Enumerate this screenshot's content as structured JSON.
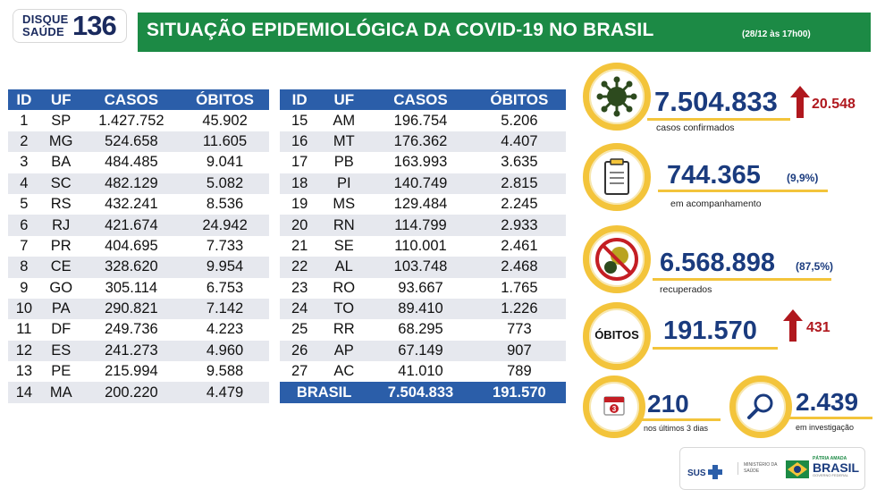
{
  "header": {
    "logo_line1": "DISQUE",
    "logo_line2": "SAÚDE",
    "logo_number": "136",
    "title": "SITUAÇÃO EPIDEMIOLÓGICA DA COVID-19 NO BRASIL",
    "date": "(28/12 às 17h00)",
    "bar_color": "#1c8a45"
  },
  "table": {
    "headers": [
      "ID",
      "UF",
      "CASOS",
      "ÓBITOS"
    ],
    "left_rows": [
      [
        "1",
        "SP",
        "1.427.752",
        "45.902"
      ],
      [
        "2",
        "MG",
        "524.658",
        "11.605"
      ],
      [
        "3",
        "BA",
        "484.485",
        "9.041"
      ],
      [
        "4",
        "SC",
        "482.129",
        "5.082"
      ],
      [
        "5",
        "RS",
        "432.241",
        "8.536"
      ],
      [
        "6",
        "RJ",
        "421.674",
        "24.942"
      ],
      [
        "7",
        "PR",
        "404.695",
        "7.733"
      ],
      [
        "8",
        "CE",
        "328.620",
        "9.954"
      ],
      [
        "9",
        "GO",
        "305.114",
        "6.753"
      ],
      [
        "10",
        "PA",
        "290.821",
        "7.142"
      ],
      [
        "11",
        "DF",
        "249.736",
        "4.223"
      ],
      [
        "12",
        "ES",
        "241.273",
        "4.960"
      ],
      [
        "13",
        "PE",
        "215.994",
        "9.588"
      ],
      [
        "14",
        "MA",
        "200.220",
        "4.479"
      ]
    ],
    "right_rows": [
      [
        "15",
        "AM",
        "196.754",
        "5.206"
      ],
      [
        "16",
        "MT",
        "176.362",
        "4.407"
      ],
      [
        "17",
        "PB",
        "163.993",
        "3.635"
      ],
      [
        "18",
        "PI",
        "140.749",
        "2.815"
      ],
      [
        "19",
        "MS",
        "129.484",
        "2.245"
      ],
      [
        "20",
        "RN",
        "114.799",
        "2.933"
      ],
      [
        "21",
        "SE",
        "110.001",
        "2.461"
      ],
      [
        "22",
        "AL",
        "103.748",
        "2.468"
      ],
      [
        "23",
        "RO",
        "93.667",
        "1.765"
      ],
      [
        "24",
        "TO",
        "89.410",
        "1.226"
      ],
      [
        "25",
        "RR",
        "68.295",
        "773"
      ],
      [
        "26",
        "AP",
        "67.149",
        "907"
      ],
      [
        "27",
        "AC",
        "41.010",
        "789"
      ]
    ],
    "total": {
      "label": "BRASIL",
      "cases": "7.504.833",
      "deaths": "191.570"
    },
    "header_color": "#2b5ea9"
  },
  "indicators": {
    "confirmed": {
      "value": "7.504.833",
      "delta": "20.548",
      "label": "casos confirmados",
      "icon": "virus-icon"
    },
    "monitoring": {
      "value": "744.365",
      "pct": "(9,9%)",
      "label": "em acompanhamento",
      "icon": "clipboard-icon"
    },
    "recovered": {
      "value": "6.568.898",
      "pct": "(87,5%)",
      "label": "recuperados",
      "icon": "no-virus-icon"
    },
    "deaths": {
      "badge": "ÓBITOS",
      "value": "191.570",
      "delta": "431"
    },
    "last3": {
      "value": "210",
      "label": "nos últimos 3 dias",
      "icon": "calendar-icon",
      "calendar_num": "3"
    },
    "investigation": {
      "value": "2.439",
      "label": "em investigação",
      "icon": "magnifier-icon"
    },
    "ring_color": "#f3c43b",
    "value_color": "#1a3b7e",
    "delta_color": "#b0181e"
  },
  "footer": {
    "sus": "SUS",
    "ministry_line1": "MINISTÉRIO DA",
    "ministry_line2": "SAÚDE",
    "patria": "PÁTRIA AMADA",
    "brasil": "BRASIL",
    "gov": "GOVERNO FEDERAL"
  }
}
